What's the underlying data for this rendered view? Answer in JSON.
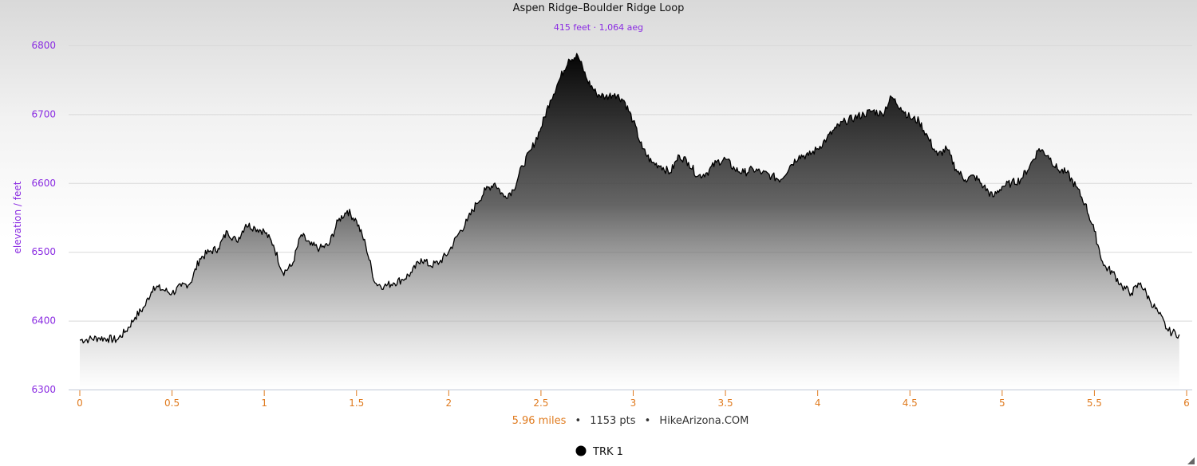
{
  "chart_data": {
    "type": "area",
    "title": "Aspen Ridge–Boulder Ridge Loop",
    "subtitle": "415 feet · 1,064 aeg",
    "ylabel": "elevation / feet",
    "xlim": [
      0,
      6
    ],
    "ylim": [
      6300,
      6800
    ],
    "x_ticks": [
      "0",
      "0.5",
      "1",
      "1.5",
      "2",
      "2.5",
      "3",
      "3.5",
      "4",
      "4.5",
      "5",
      "5.5",
      "6"
    ],
    "y_ticks": [
      "6300",
      "6400",
      "6500",
      "6600",
      "6700",
      "6800"
    ],
    "grid": true,
    "footer": {
      "distance": "5.96 miles",
      "points": "1153 pts",
      "source": "HikeArizona.COM",
      "separator": "•"
    },
    "legend": {
      "label": "TRK 1",
      "position": "bottom-center"
    },
    "colors": {
      "line": "#000000",
      "fill_top": "#000000",
      "fill_bottom": "#ffffff",
      "y_axis": "#8a2be2",
      "x_axis": "#e07b1f"
    },
    "series": [
      {
        "x": [
          0,
          0.05,
          0.1,
          0.15,
          0.2,
          0.25,
          0.3,
          0.35,
          0.4,
          0.45,
          0.5,
          0.55,
          0.6,
          0.65,
          0.7,
          0.75,
          0.8,
          0.85,
          0.9,
          0.95,
          1.0,
          1.05,
          1.1,
          1.15,
          1.2,
          1.25,
          1.3,
          1.35,
          1.4,
          1.45,
          1.5,
          1.55,
          1.6,
          1.65,
          1.7,
          1.75,
          1.8,
          1.85,
          1.9,
          1.95,
          2.0,
          2.05,
          2.1,
          2.15,
          2.2,
          2.25,
          2.3,
          2.35,
          2.4,
          2.45,
          2.5,
          2.55,
          2.6,
          2.65,
          2.7,
          2.75,
          2.8,
          2.85,
          2.9,
          2.95,
          3.0,
          3.05,
          3.1,
          3.15,
          3.2,
          3.25,
          3.3,
          3.35,
          3.4,
          3.45,
          3.5,
          3.55,
          3.6,
          3.65,
          3.7,
          3.75,
          3.8,
          3.85,
          3.9,
          3.95,
          4.0,
          4.05,
          4.1,
          4.15,
          4.2,
          4.25,
          4.3,
          4.35,
          4.4,
          4.45,
          4.5,
          4.55,
          4.6,
          4.65,
          4.7,
          4.75,
          4.8,
          4.85,
          4.9,
          4.95,
          5.0,
          5.05,
          5.1,
          5.15,
          5.2,
          5.25,
          5.3,
          5.35,
          5.4,
          5.45,
          5.5,
          5.55,
          5.6,
          5.65,
          5.7,
          5.75,
          5.8,
          5.85,
          5.9,
          5.96
        ],
        "y": [
          6372,
          6373,
          6375,
          6374,
          6372,
          6385,
          6405,
          6420,
          6450,
          6445,
          6440,
          6450,
          6455,
          6490,
          6500,
          6505,
          6530,
          6515,
          6540,
          6535,
          6530,
          6510,
          6470,
          6480,
          6525,
          6510,
          6505,
          6510,
          6545,
          6560,
          6545,
          6510,
          6455,
          6450,
          6455,
          6460,
          6470,
          6490,
          6480,
          6485,
          6500,
          6525,
          6545,
          6570,
          6590,
          6600,
          6580,
          6590,
          6625,
          6650,
          6680,
          6720,
          6750,
          6780,
          6785,
          6750,
          6730,
          6725,
          6730,
          6720,
          6690,
          6650,
          6630,
          6625,
          6615,
          6640,
          6630,
          6610,
          6615,
          6630,
          6635,
          6620,
          6615,
          6620,
          6615,
          6610,
          6605,
          6625,
          6640,
          6640,
          6650,
          6665,
          6680,
          6690,
          6695,
          6700,
          6705,
          6700,
          6725,
          6710,
          6695,
          6690,
          6665,
          6640,
          6650,
          6620,
          6605,
          6610,
          6595,
          6580,
          6595,
          6600,
          6605,
          6625,
          6650,
          6640,
          6620,
          6615,
          6595,
          6570,
          6530,
          6480,
          6470,
          6450,
          6440,
          6455,
          6430,
          6410,
          6385,
          6380
        ]
      }
    ]
  }
}
